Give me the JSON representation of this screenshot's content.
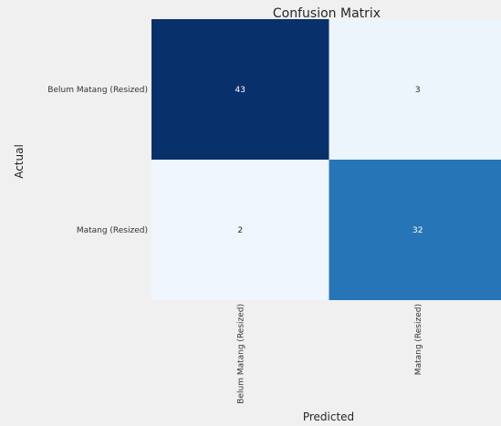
{
  "chart_data": {
    "type": "heatmap",
    "title": "Confusion Matrix",
    "xlabel": "Predicted",
    "ylabel": "Actual",
    "x_categories": [
      "Belum Matang (Resized)",
      "Matang (Resized)"
    ],
    "y_categories": [
      "Belum Matang (Resized)",
      "Matang (Resized)"
    ],
    "values": [
      [
        43,
        3
      ],
      [
        2,
        32
      ]
    ],
    "colormap": "Blues",
    "vmin": 2,
    "vmax": 43,
    "colors": {
      "background": "#f0f0f0",
      "title": "#262626",
      "tick_text": "#333333",
      "cell_text_dark": "#ffffff",
      "cell_text_light": "#262626"
    }
  }
}
